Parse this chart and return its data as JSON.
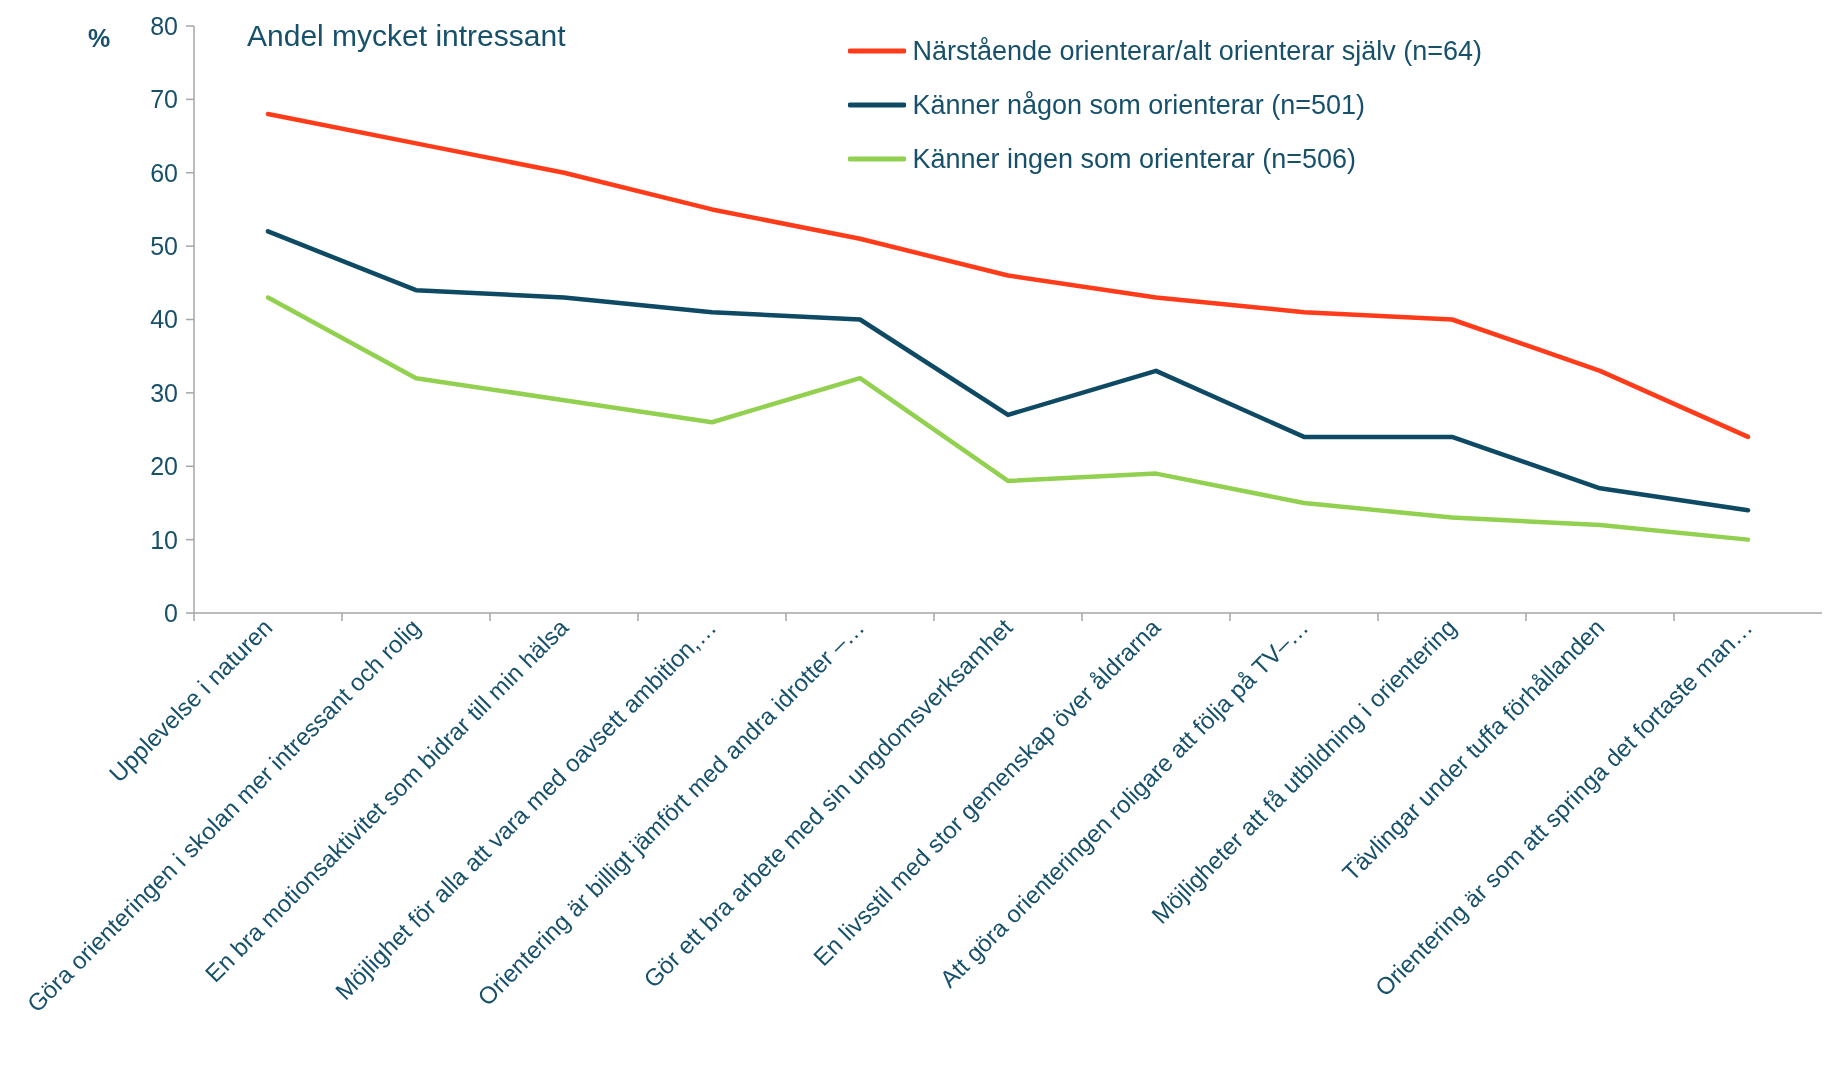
{
  "chart_data": {
    "type": "line",
    "title": "Andel mycket intressant",
    "ylabel": "%",
    "categories": [
      "Upplevelse i naturen",
      "Göra orienteringen i skolan mer intressant och rolig",
      "En bra motionsaktivitet som bidrar till min hälsa",
      "Möjlighet för alla att vara med oavsett ambition,…",
      "Orientering är billigt jämfört med andra idrotter –…",
      "Gör ett bra arbete med sin ungdomsverksamhet",
      "En livsstil med stor gemenskap över åldrarna",
      "Att göra orienteringen roligare att följa på TV–…",
      "Möjligheter att få utbildning i orientering",
      "Tävlingar under tuffa förhållanden",
      "Orientering är som att springa det fortaste man…"
    ],
    "series": [
      {
        "name": "Närstående orienterar/alt orienterar själv (n=64)",
        "color": "#ff3b1a",
        "values": [
          68,
          64,
          60,
          55,
          51,
          46,
          43,
          41,
          40,
          33,
          24
        ]
      },
      {
        "name": "Känner någon som orienterar (n=501)",
        "color": "#0f4a64",
        "values": [
          52,
          44,
          43,
          41,
          40,
          27,
          33,
          24,
          24,
          17,
          14
        ]
      },
      {
        "name": "Känner ingen som orienterar (n=506)",
        "color": "#92d050",
        "values": [
          43,
          32,
          29,
          26,
          32,
          18,
          19,
          15,
          13,
          12,
          10
        ]
      }
    ],
    "ylim": [
      0,
      80
    ],
    "yticks": [
      0,
      10,
      20,
      30,
      40,
      50,
      60,
      70,
      80
    ],
    "legend": "top right",
    "marker": "none",
    "line_style": "solid"
  }
}
